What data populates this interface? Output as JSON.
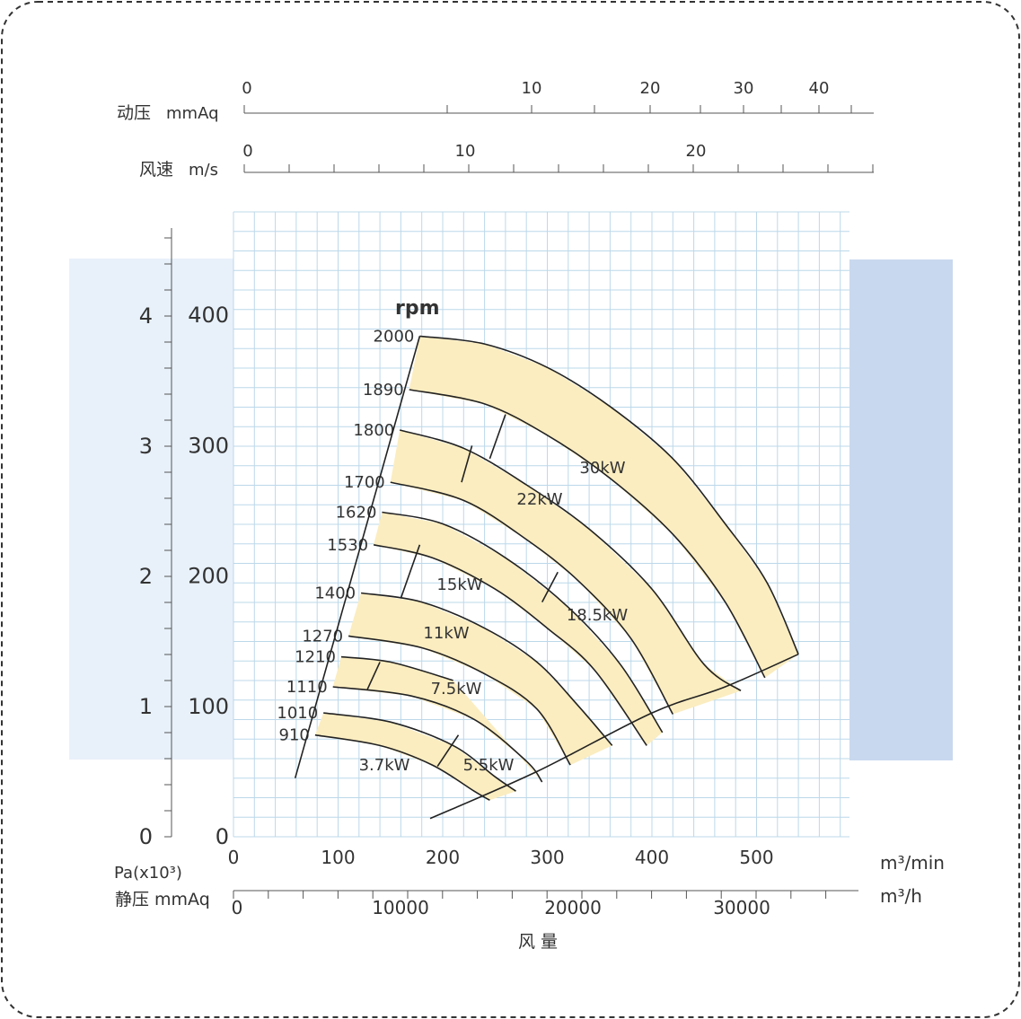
{
  "chart_data": {
    "type": "line",
    "x": {
      "unit": "m³/min",
      "unit_alt": "m³/h",
      "label": "风 量",
      "ticks": [
        0,
        100,
        200,
        300,
        400,
        500
      ],
      "alt_ticks": [
        0,
        10000,
        20000,
        30000
      ],
      "range": [
        0,
        590
      ]
    },
    "y": {
      "label_mmaq": "静压 mmAq",
      "label_pa": "Pa(x10³)",
      "ticks_mmaq": [
        0,
        100,
        200,
        300,
        400
      ],
      "ticks_pa": [
        0,
        1,
        2,
        3,
        4
      ],
      "range": [
        0,
        480
      ]
    },
    "top_axes": [
      {
        "label": "动压",
        "unit": "mmAq",
        "ticks": [
          0,
          10,
          20,
          30,
          40
        ]
      },
      {
        "label": "风速",
        "unit": "m/s",
        "ticks": [
          0,
          10,
          20
        ]
      }
    ],
    "rpm_title": "rpm",
    "rpm_curves": [
      {
        "rpm": "2000",
        "points": [
          [
            178,
            384
          ],
          [
            240,
            378
          ],
          [
            300,
            360
          ],
          [
            360,
            330
          ],
          [
            420,
            290
          ],
          [
            470,
            240
          ],
          [
            510,
            195
          ],
          [
            540,
            140
          ]
        ]
      },
      {
        "rpm": "1890",
        "points": [
          [
            168,
            343
          ],
          [
            240,
            332
          ],
          [
            300,
            308
          ],
          [
            360,
            275
          ],
          [
            420,
            232
          ],
          [
            470,
            180
          ],
          [
            508,
            122
          ]
        ]
      },
      {
        "rpm": "1800",
        "points": [
          [
            159,
            312
          ],
          [
            220,
            298
          ],
          [
            280,
            270
          ],
          [
            340,
            236
          ],
          [
            400,
            190
          ],
          [
            450,
            132
          ],
          [
            485,
            112
          ]
        ]
      },
      {
        "rpm": "1700",
        "points": [
          [
            150,
            272
          ],
          [
            220,
            258
          ],
          [
            280,
            228
          ],
          [
            330,
            196
          ],
          [
            380,
            152
          ],
          [
            420,
            94
          ]
        ]
      },
      {
        "rpm": "1620",
        "points": [
          [
            142,
            249
          ],
          [
            200,
            240
          ],
          [
            260,
            214
          ],
          [
            320,
            176
          ],
          [
            370,
            132
          ],
          [
            410,
            80
          ]
        ]
      },
      {
        "rpm": "1530",
        "points": [
          [
            134,
            224
          ],
          [
            190,
            214
          ],
          [
            250,
            190
          ],
          [
            300,
            160
          ],
          [
            345,
            128
          ],
          [
            395,
            70
          ]
        ]
      },
      {
        "rpm": "1400",
        "points": [
          [
            122,
            187
          ],
          [
            180,
            180
          ],
          [
            240,
            160
          ],
          [
            290,
            134
          ],
          [
            330,
            100
          ],
          [
            362,
            70
          ]
        ]
      },
      {
        "rpm": "1270",
        "points": [
          [
            110,
            154
          ],
          [
            180,
            145
          ],
          [
            240,
            125
          ],
          [
            290,
            98
          ],
          [
            322,
            55
          ]
        ]
      },
      {
        "rpm": "1210",
        "points": [
          [
            103,
            138
          ],
          [
            150,
            134
          ],
          [
            210,
            120
          ]
        ]
      },
      {
        "rpm": "1110",
        "points": [
          [
            95,
            115
          ],
          [
            170,
            108
          ],
          [
            230,
            90
          ],
          [
            280,
            58
          ],
          [
            295,
            42
          ]
        ]
      },
      {
        "rpm": "1010",
        "points": [
          [
            86,
            95
          ],
          [
            150,
            88
          ],
          [
            210,
            70
          ],
          [
            250,
            46
          ],
          [
            270,
            35
          ]
        ]
      },
      {
        "rpm": "910",
        "points": [
          [
            78,
            78
          ],
          [
            140,
            70
          ],
          [
            190,
            55
          ],
          [
            230,
            35
          ],
          [
            245,
            28
          ]
        ]
      }
    ],
    "power_lines": [
      {
        "label": "30kW",
        "points": [
          [
            260,
            324
          ],
          [
            245,
            290
          ]
        ]
      },
      {
        "label": "22kW",
        "points": [
          [
            228,
            300
          ],
          [
            218,
            272
          ]
        ]
      },
      {
        "label": "18.5kW",
        "points": [
          [
            310,
            203
          ],
          [
            295,
            180
          ]
        ]
      },
      {
        "label": "15kW",
        "points": [
          [
            178,
            224
          ],
          [
            160,
            183
          ]
        ]
      },
      {
        "label": "11kW",
        "points": [
          null,
          null
        ]
      },
      {
        "label": "7.5kW",
        "points": [
          [
            140,
            134
          ],
          [
            128,
            113
          ]
        ]
      },
      {
        "label": "5.5kW",
        "points": [
          [
            215,
            78
          ],
          [
            195,
            54
          ]
        ]
      },
      {
        "label": "3.7kW",
        "points": [
          null,
          null
        ]
      }
    ],
    "boundary_left": [
      [
        178,
        384
      ],
      [
        59,
        45
      ]
    ],
    "boundary_right": [
      [
        188,
        14
      ],
      [
        290,
        50
      ],
      [
        400,
        95
      ],
      [
        470,
        115
      ],
      [
        540,
        140
      ]
    ],
    "power_band_labels": [
      "30kW",
      "22kW",
      "18.5kW",
      "15kW",
      "11kW",
      "7.5kW",
      "5.5kW",
      "3.7kW"
    ],
    "colors": {
      "band": "#fbedc0",
      "grid": "#bcd8ea",
      "left_panel": "#e8f1fa",
      "right_panel": "#c8d8ee",
      "line": "#222222"
    }
  }
}
